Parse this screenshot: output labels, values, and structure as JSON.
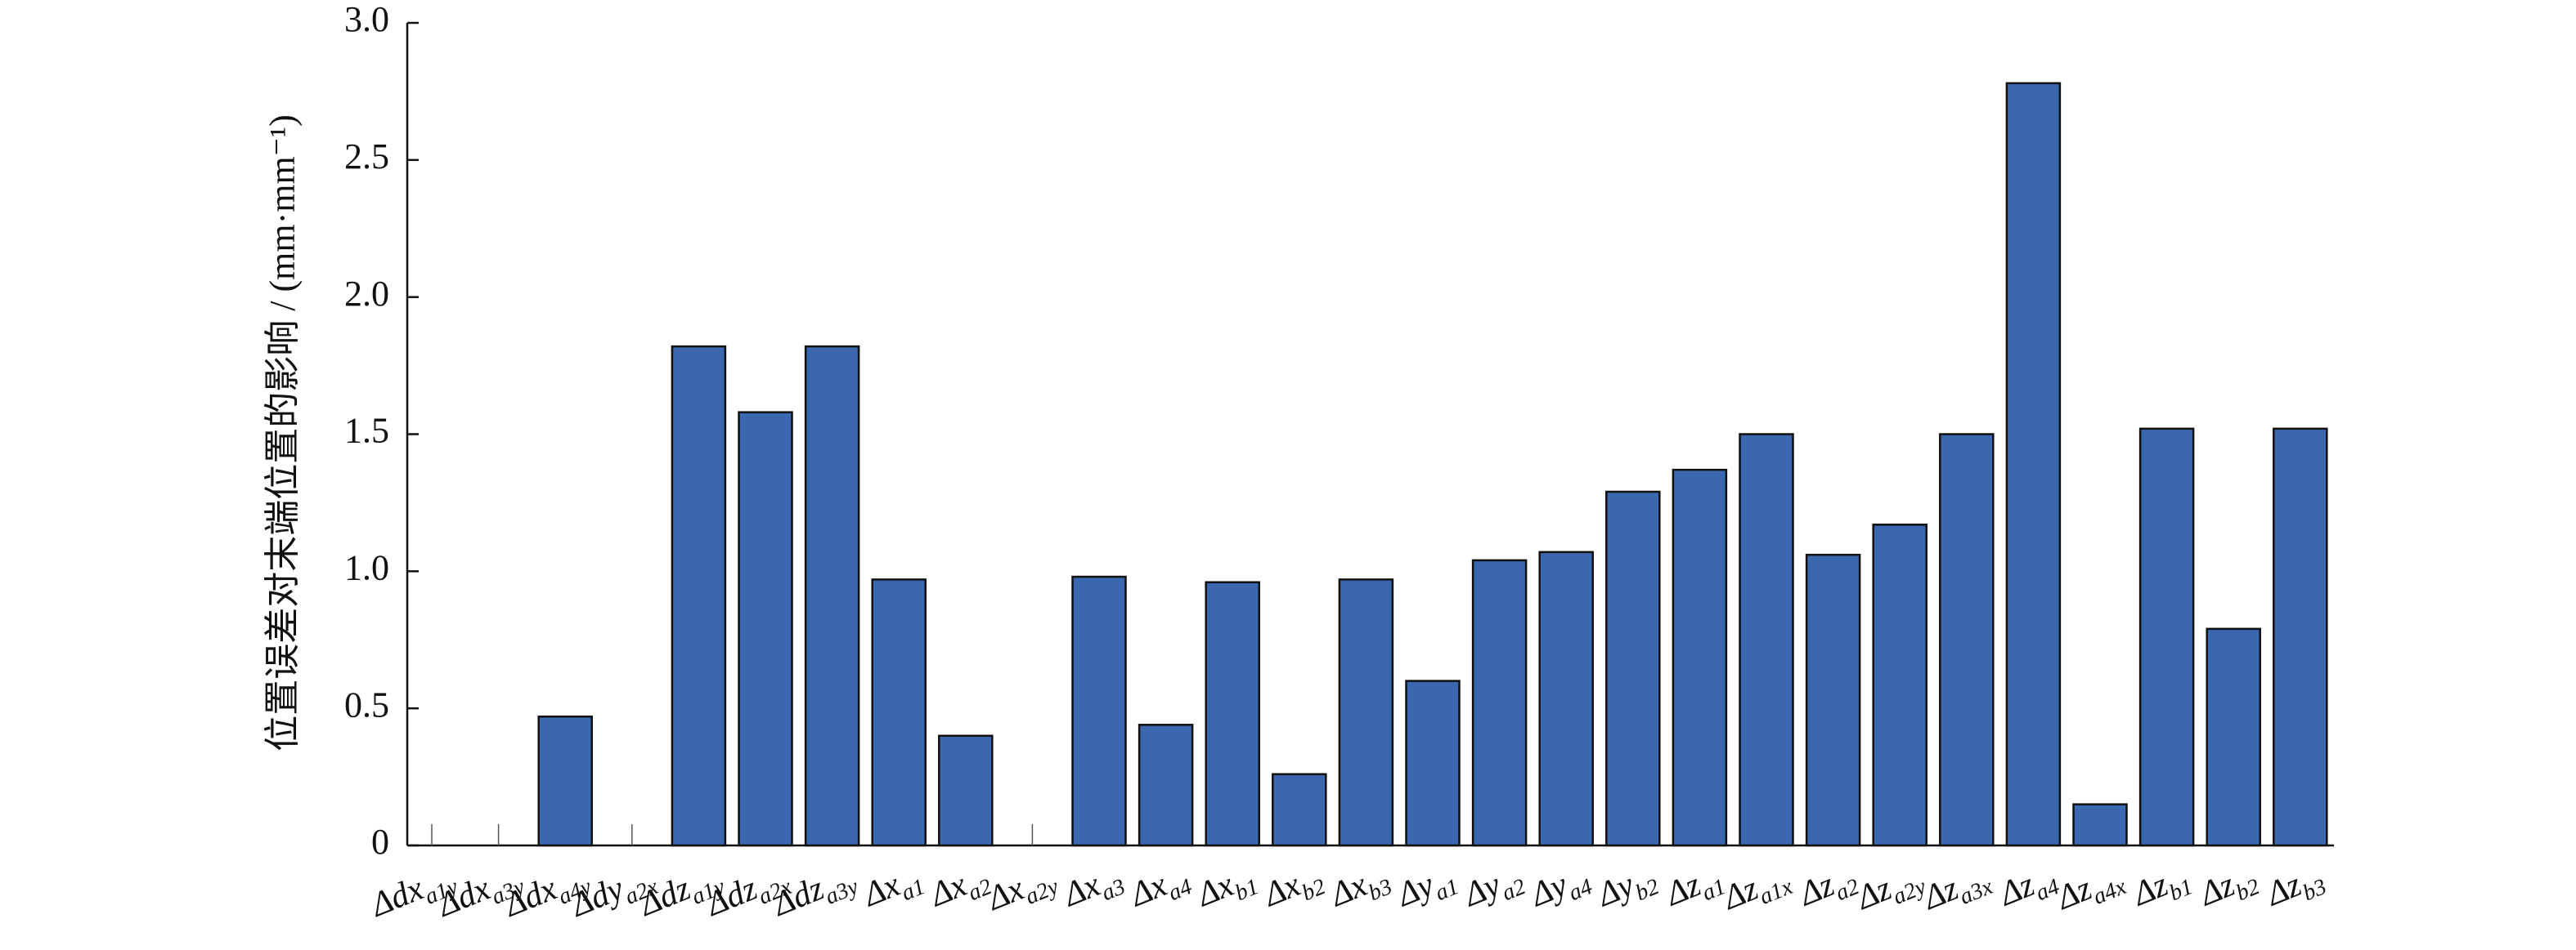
{
  "chart_data": {
    "type": "bar",
    "y_label": "位置误差对末端位置的影响 / (mm·mm⁻¹)",
    "categories": [
      {
        "base": "Δdx",
        "sub": "a1y"
      },
      {
        "base": "Δdx",
        "sub": "a3y"
      },
      {
        "base": "Δdx",
        "sub": "a4y"
      },
      {
        "base": "Δdy",
        "sub": "a2x"
      },
      {
        "base": "Δdz",
        "sub": "a1y"
      },
      {
        "base": "Δdz",
        "sub": "a2x"
      },
      {
        "base": "Δdz",
        "sub": "a3y"
      },
      {
        "base": "Δx",
        "sub": "a1"
      },
      {
        "base": "Δx",
        "sub": "a2"
      },
      {
        "base": "Δx",
        "sub": "a2y"
      },
      {
        "base": "Δx",
        "sub": "a3"
      },
      {
        "base": "Δx",
        "sub": "a4"
      },
      {
        "base": "Δx",
        "sub": "b1"
      },
      {
        "base": "Δx",
        "sub": "b2"
      },
      {
        "base": "Δx",
        "sub": "b3"
      },
      {
        "base": "Δy",
        "sub": "a1"
      },
      {
        "base": "Δy",
        "sub": "a2"
      },
      {
        "base": "Δy",
        "sub": "a4"
      },
      {
        "base": "Δy",
        "sub": "b2"
      },
      {
        "base": "Δz",
        "sub": "a1"
      },
      {
        "base": "Δz",
        "sub": "a1x"
      },
      {
        "base": "Δz",
        "sub": "a2"
      },
      {
        "base": "Δz",
        "sub": "a2y"
      },
      {
        "base": "Δz",
        "sub": "a3x"
      },
      {
        "base": "Δz",
        "sub": "a4"
      },
      {
        "base": "Δz",
        "sub": "a4x"
      },
      {
        "base": "Δz",
        "sub": "b1"
      },
      {
        "base": "Δz",
        "sub": "b2"
      },
      {
        "base": "Δz",
        "sub": "b3"
      }
    ],
    "values": [
      0,
      0,
      0.47,
      0,
      1.82,
      1.58,
      1.82,
      0.97,
      0.4,
      0,
      0.98,
      0.44,
      0.96,
      0.26,
      0.97,
      0.6,
      1.04,
      1.07,
      1.29,
      1.37,
      1.5,
      1.06,
      1.17,
      1.5,
      2.78,
      0.15,
      1.52,
      0.79,
      1.52
    ],
    "color": "#3a67ad",
    "ylim": [
      0,
      3.0
    ],
    "yticks": [
      0,
      0.5,
      {
        "value": 1.0,
        "label": "1.0"
      },
      1.5,
      {
        "value": 2.0,
        "label": "2.0"
      },
      2.5,
      {
        "value": 3.0,
        "label": "3.0"
      }
    ],
    "grid": false
  }
}
